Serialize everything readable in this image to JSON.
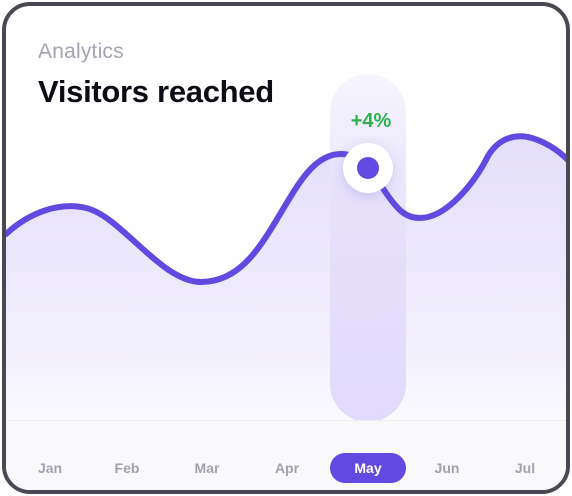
{
  "card": {
    "subtitle": "Analytics",
    "title": "Visitors reached"
  },
  "highlight": {
    "month": "May",
    "change": "+4%",
    "change_color": "#2bb24c"
  },
  "colors": {
    "line": "#6249e0",
    "area_top": "#e4defb",
    "highlight_band": "#e0d9fa",
    "active_pill": "#6249e0"
  },
  "chart_data": {
    "type": "area",
    "categories": [
      "Jan",
      "Feb",
      "Mar",
      "Apr",
      "May",
      "Jun",
      "Jul"
    ],
    "grid": false,
    "legend": "none"
  }
}
